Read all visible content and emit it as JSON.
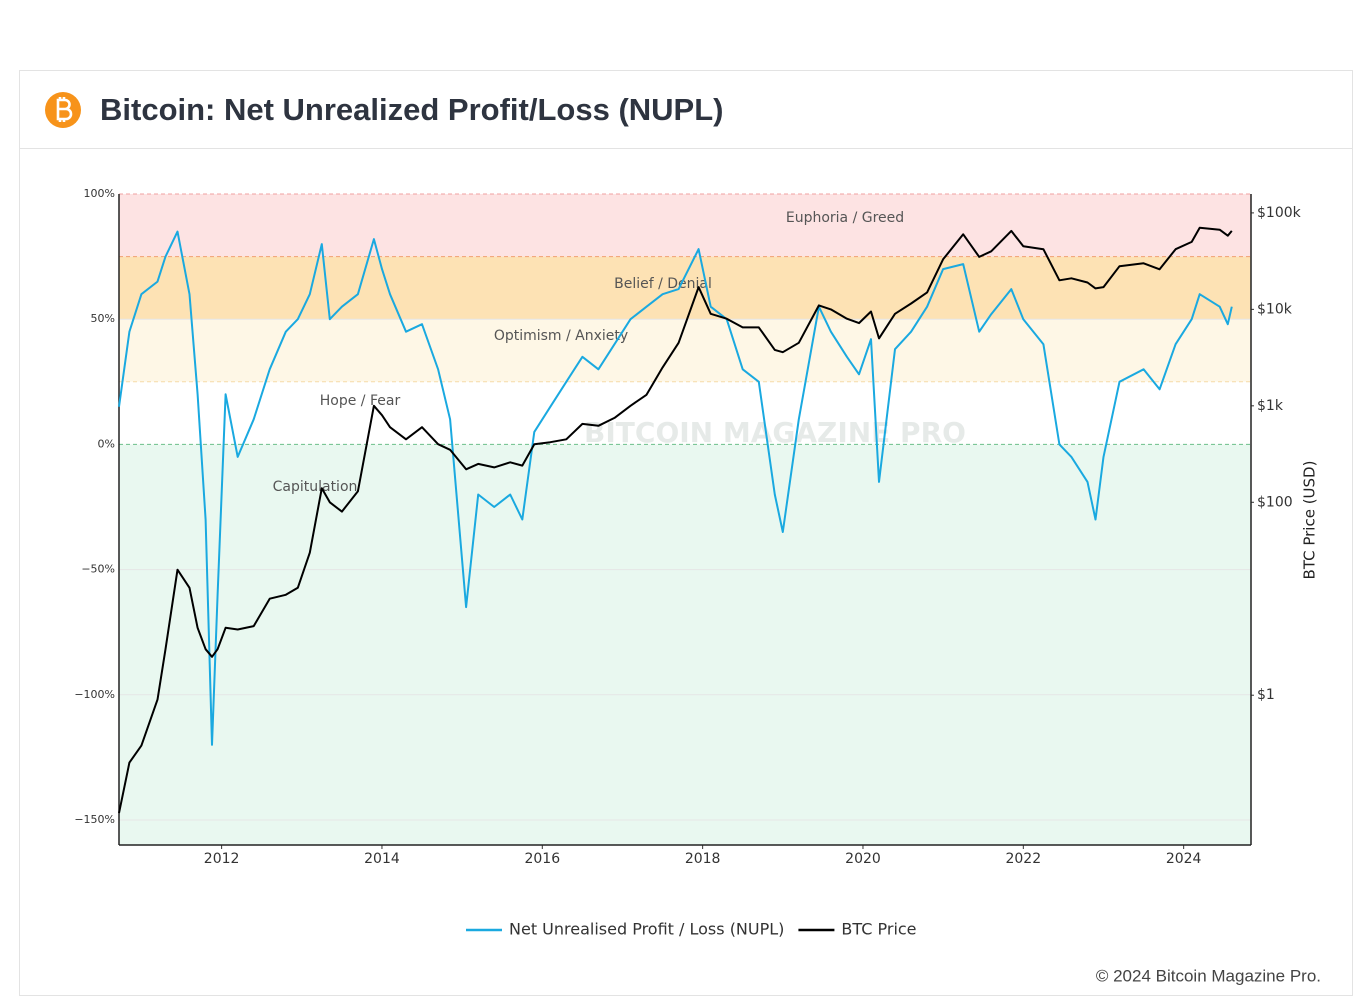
{
  "header": {
    "title": "Bitcoin: Net Unrealized Profit/Loss (NUPL)"
  },
  "chart_data": {
    "type": "line",
    "watermark": "BITCOIN MAGAZINE PRO",
    "zones": [
      {
        "name": "Euphoria / Greed",
        "from": 75,
        "to": 100,
        "color": "#fde3e3"
      },
      {
        "name": "Belief / Denial",
        "from": 50,
        "to": 75,
        "color": "#fde2b4"
      },
      {
        "name": "Optimism / Anxiety",
        "from": 25,
        "to": 50,
        "color": "#fef7e6"
      },
      {
        "name": "Hope / Fear",
        "from": 0,
        "to": 25,
        "color": "#ffffff"
      },
      {
        "name": "Capitulation",
        "from": -160,
        "to": 0,
        "color": "#e9f8f0"
      }
    ],
    "x": [
      2010.72,
      2010.85,
      2011.0,
      2011.2,
      2011.3,
      2011.45,
      2011.6,
      2011.7,
      2011.8,
      2011.88,
      2011.95,
      2012.05,
      2012.2,
      2012.4,
      2012.6,
      2012.8,
      2012.95,
      2013.1,
      2013.25,
      2013.35,
      2013.5,
      2013.7,
      2013.9,
      2014.0,
      2014.1,
      2014.3,
      2014.5,
      2014.7,
      2014.85,
      2015.05,
      2015.2,
      2015.4,
      2015.6,
      2015.75,
      2015.9,
      2016.1,
      2016.3,
      2016.5,
      2016.7,
      2016.9,
      2017.1,
      2017.3,
      2017.5,
      2017.7,
      2017.95,
      2018.1,
      2018.3,
      2018.5,
      2018.7,
      2018.9,
      2019.0,
      2019.2,
      2019.45,
      2019.6,
      2019.8,
      2019.95,
      2020.1,
      2020.2,
      2020.4,
      2020.6,
      2020.8,
      2021.0,
      2021.25,
      2021.45,
      2021.6,
      2021.85,
      2022.0,
      2022.25,
      2022.45,
      2022.6,
      2022.8,
      2022.9,
      2023.0,
      2023.2,
      2023.5,
      2023.7,
      2023.9,
      2024.1,
      2024.2,
      2024.45,
      2024.55,
      2024.6
    ],
    "series": [
      {
        "name": "Net Unrealised Profit / Loss (NUPL)",
        "color": "#1aa9e0",
        "axis": "y",
        "values": [
          15,
          45,
          60,
          65,
          75,
          85,
          60,
          20,
          -30,
          -120,
          -60,
          20,
          -5,
          10,
          30,
          45,
          50,
          60,
          80,
          50,
          55,
          60,
          82,
          70,
          60,
          45,
          48,
          30,
          10,
          -65,
          -20,
          -25,
          -20,
          -30,
          5,
          15,
          25,
          35,
          30,
          40,
          50,
          55,
          60,
          62,
          78,
          55,
          50,
          30,
          25,
          -20,
          -35,
          10,
          55,
          45,
          35,
          28,
          42,
          -15,
          38,
          45,
          55,
          70,
          72,
          45,
          52,
          62,
          50,
          40,
          0,
          -5,
          -15,
          -30,
          -5,
          25,
          30,
          22,
          40,
          50,
          60,
          55,
          48,
          55
        ]
      },
      {
        "name": "BTC Price",
        "color": "#000000",
        "axis": "y2",
        "values": [
          0.06,
          0.2,
          0.3,
          0.9,
          3,
          20,
          13,
          5,
          3,
          2.5,
          3,
          5,
          4.8,
          5.2,
          10,
          11,
          13,
          30,
          140,
          100,
          80,
          130,
          1000,
          800,
          600,
          450,
          600,
          400,
          350,
          220,
          250,
          230,
          260,
          240,
          400,
          420,
          450,
          650,
          620,
          750,
          1000,
          1300,
          2500,
          4500,
          17000,
          9000,
          8000,
          6500,
          6500,
          3800,
          3600,
          4500,
          11000,
          10000,
          8000,
          7200,
          9500,
          5000,
          9000,
          11500,
          15000,
          33000,
          60000,
          35000,
          40000,
          65000,
          45000,
          42000,
          20000,
          21000,
          19000,
          16500,
          17000,
          28000,
          30000,
          26000,
          42000,
          50000,
          70000,
          67000,
          58000,
          65000
        ]
      }
    ],
    "xlim": [
      2010.72,
      2024.84
    ],
    "xticks": [
      2012,
      2014,
      2016,
      2018,
      2020,
      2022,
      2024
    ],
    "ylim": [
      -160,
      100
    ],
    "yticks": [
      {
        "value": 100,
        "label": "100%"
      },
      {
        "value": 50,
        "label": "50%"
      },
      {
        "value": 0,
        "label": "0%"
      },
      {
        "value": -50,
        "label": "−50%"
      },
      {
        "value": -100,
        "label": "−100%"
      },
      {
        "value": -150,
        "label": "−150%"
      }
    ],
    "y2lim": [
      0.028,
      157000
    ],
    "y2log": true,
    "y2ticks": [
      {
        "value": 1,
        "label": "$1"
      },
      {
        "value": 100,
        "label": "$100"
      },
      {
        "value": 1000,
        "label": "$1k"
      },
      {
        "value": 10000,
        "label": "$10k"
      },
      {
        "value": 100000,
        "label": "$100k"
      }
    ],
    "y2label": "BTC Price (USD)",
    "grid": true
  },
  "footer": {
    "copyright": "© 2024 Bitcoin Magazine Pro."
  }
}
